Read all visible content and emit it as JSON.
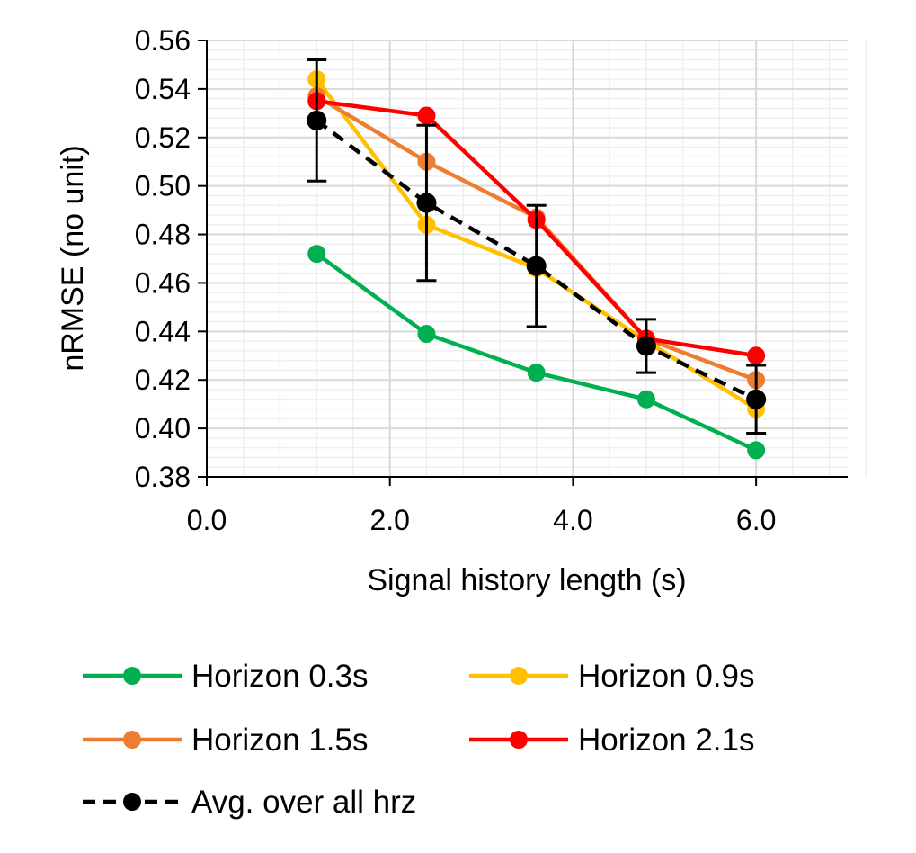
{
  "chart_data": {
    "type": "line",
    "title": "",
    "xlabel": "Signal history length (s)",
    "ylabel": "nRMSE (no unit)",
    "xlim": [
      0,
      7
    ],
    "ylim": [
      0.38,
      0.56
    ],
    "x_major_ticks": [
      0,
      2,
      4,
      6
    ],
    "x_tick_labels": [
      "0.0",
      "2.0",
      "4.0",
      "6.0"
    ],
    "y_major_ticks": [
      0.38,
      0.4,
      0.42,
      0.44,
      0.46,
      0.48,
      0.5,
      0.52,
      0.54,
      0.56
    ],
    "y_tick_labels": [
      "0.38",
      "0.40",
      "0.42",
      "0.44",
      "0.46",
      "0.48",
      "0.50",
      "0.52",
      "0.54",
      "0.56"
    ],
    "x_minor_step": 0.4,
    "y_minor_step": 0.004,
    "grid": true,
    "legend_position": "bottom",
    "x": [
      1.2,
      2.4,
      3.6,
      4.8,
      6.0
    ],
    "series": [
      {
        "name": "Horizon 0.3s",
        "color": "#00B050",
        "dashed": false,
        "values": [
          0.472,
          0.439,
          0.423,
          0.412,
          0.391
        ]
      },
      {
        "name": "Horizon 0.9s",
        "color": "#FFC000",
        "dashed": false,
        "values": [
          0.544,
          0.484,
          0.466,
          0.436,
          0.408
        ]
      },
      {
        "name": "Horizon 1.5s",
        "color": "#ED7D31",
        "dashed": false,
        "values": [
          0.537,
          0.51,
          0.487,
          0.437,
          0.42
        ]
      },
      {
        "name": "Horizon 2.1s",
        "color": "#FF0000",
        "dashed": false,
        "values": [
          0.535,
          0.529,
          0.486,
          0.437,
          0.43
        ]
      },
      {
        "name": "Avg. over all hrz",
        "color": "#000000",
        "dashed": true,
        "values": [
          0.527,
          0.493,
          0.467,
          0.434,
          0.412
        ],
        "error_bars": [
          0.025,
          0.032,
          0.025,
          0.011,
          0.014
        ]
      }
    ]
  }
}
